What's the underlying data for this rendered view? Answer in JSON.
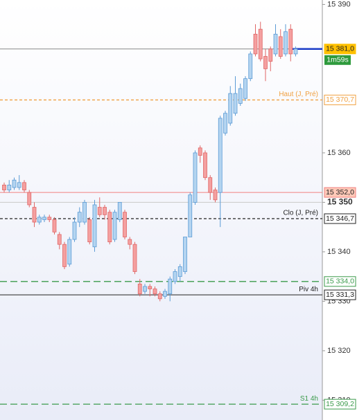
{
  "chart_data": {
    "type": "candlestick",
    "ylim": [
      15306.0,
      15390.9
    ],
    "yticks": [
      {
        "value": 15390,
        "label": "15 390"
      },
      {
        "value": 15360,
        "label": "15 360"
      },
      {
        "value": 15350,
        "label": "15 350",
        "bold": true
      },
      {
        "value": 15340,
        "label": "15 340"
      },
      {
        "value": 15330,
        "label": "15 330"
      },
      {
        "value": 15320,
        "label": "15 320"
      },
      {
        "value": 15310,
        "label": "15 310"
      }
    ],
    "up_color": "#5b9bd5",
    "down_color": "#e06666",
    "open": [
      15353.5,
      15352.5,
      15353,
      15353,
      15354,
      15352,
      15349,
      15346,
      15346.5,
      15347,
      15346.5,
      15343.5,
      15341.5,
      15337.5,
      15342.5,
      15346,
      15346,
      15346.5,
      15341,
      15349,
      15349,
      15348,
      15342.5,
      15346.5,
      15348,
      15342.5,
      15341.5,
      15333.5,
      15332,
      15333,
      15332.5,
      15331.5,
      15331,
      15331.5,
      15334,
      15335,
      15336,
      15343,
      15350,
      15361,
      15360,
      15355,
      15352.5,
      15352,
      15364,
      15366,
      15368,
      15370,
      15371,
      15375,
      15384,
      15385,
      15379.5,
      15381,
      15380,
      15383.5,
      15380,
      15385,
      15380
    ],
    "high": [
      15354,
      15354.5,
      15355,
      15355.5,
      15354.5,
      15352.5,
      15350,
      15347.5,
      15347.5,
      15347.5,
      15347,
      15344,
      15342,
      15343,
      15347,
      15349,
      15350.5,
      15347,
      15350.5,
      15351,
      15349.5,
      15348.5,
      15348.5,
      15350,
      15348.5,
      15343,
      15342,
      15334.5,
      15333.5,
      15333.5,
      15333,
      15332,
      15332.5,
      15335,
      15336.5,
      15337.5,
      15343,
      15352,
      15360.5,
      15361.5,
      15360.5,
      15355.5,
      15353,
      15367.5,
      15368.5,
      15373.5,
      15375.5,
      15374,
      15375.5,
      15380.5,
      15386,
      15386.5,
      15381,
      15381.5,
      15386,
      15385,
      15386,
      15386,
      15381.5
    ],
    "low": [
      15352,
      15352,
      15352.5,
      15352.5,
      15352,
      15349,
      15345,
      15345.5,
      15346,
      15346,
      15343.5,
      15340.5,
      15336.5,
      15337,
      15342,
      15345,
      15345.5,
      15341.5,
      15340,
      15347,
      15346.5,
      15341.5,
      15342,
      15346,
      15342.5,
      15340.5,
      15335.5,
      15331,
      15331.5,
      15331,
      15331,
      15330,
      15330.5,
      15330,
      15333.5,
      15334,
      15335.5,
      15343,
      15349.5,
      15358,
      15354.5,
      15350.5,
      15350,
      15345,
      15363.5,
      15365.5,
      15367.5,
      15369.5,
      15370.5,
      15374.5,
      15379.5,
      15378.5,
      15374.5,
      15376.5,
      15379.5,
      15379,
      15379.5,
      15378.5,
      15379.5
    ],
    "close": [
      15352.5,
      15353.5,
      15354.5,
      15354,
      15352.5,
      15349.5,
      15346,
      15347,
      15347,
      15346.5,
      15344,
      15341.5,
      15337,
      15342.5,
      15346,
      15348,
      15350,
      15342,
      15349.5,
      15347.5,
      15347.5,
      15342,
      15348,
      15350,
      15343,
      15341.5,
      15336,
      15331.5,
      15333,
      15332.5,
      15331.5,
      15330.5,
      15332,
      15334.5,
      15336,
      15337,
      15343,
      15351.5,
      15360,
      15359.5,
      15355,
      15352,
      15350.5,
      15367,
      15368,
      15372,
      15372,
      15373,
      15375,
      15380,
      15380,
      15379,
      15377,
      15378.5,
      15384,
      15379.5,
      15384.5,
      15380,
      15381
    ],
    "levels": [
      {
        "value": 15381.0,
        "value_label": "15 381,0",
        "color": "#888888",
        "style": "solid",
        "countdown": "1m59s"
      },
      {
        "value": 15370.7,
        "value_label": "15 370,7",
        "label": "Haut (J, Pré)",
        "color": "#f0a040",
        "style": "dashed"
      },
      {
        "value": 15352.0,
        "value_label": "15 352,0",
        "color": "#f08080",
        "style": "solid"
      },
      {
        "value": 15346.7,
        "value_label": "15 346,7",
        "label": "Clo (J, Pré)",
        "color": "#222222",
        "style": "dashed"
      },
      {
        "value": 15334.0,
        "value_label": "15 334,0",
        "color": "#3a9a4a",
        "style": "longdash"
      },
      {
        "value": 15331.3,
        "value_label": "15 331,3",
        "label": "Piv 4h",
        "color": "#222222",
        "style": "solid"
      },
      {
        "value": 15309.2,
        "value_label": "15 309,2",
        "label": "S1 4h",
        "color": "#3a9a4a",
        "style": "longdash"
      }
    ]
  }
}
